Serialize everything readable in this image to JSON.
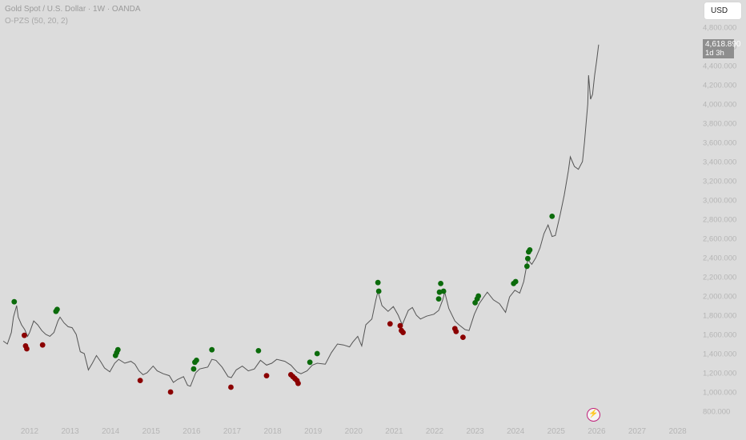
{
  "header": {
    "title": "Gold Spot / U.S. Dollar · 1W · OANDA",
    "indicator": "O-PZS (50, 20, 2)"
  },
  "currency_button": "USD",
  "price_tag": {
    "price": "4,618.890",
    "countdown": "1d 3h"
  },
  "colors": {
    "background": "#dcdcdc",
    "line": "#555555",
    "buy": "#0b6b0b",
    "sell": "#8b0000",
    "axis_text": "#b5b5b5"
  },
  "icons": {
    "bolt": "lightning-bolt-icon"
  },
  "chart_data": {
    "type": "line",
    "title": "Gold Spot / U.S. Dollar · 1W · OANDA",
    "y_ticks": [
      "800.000",
      "1,000.000",
      "1,200.000",
      "1,400.000",
      "1,600.000",
      "1,800.000",
      "2,000.000",
      "2,200.000",
      "2,400.000",
      "2,600.000",
      "2,800.000",
      "3,000.000",
      "3,200.000",
      "3,400.000",
      "3,600.000",
      "3,800.000",
      "4,000.000",
      "4,200.000",
      "4,400.000",
      "4,600.000",
      "4,800.000"
    ],
    "y_tick_values": [
      800,
      1000,
      1200,
      1400,
      1600,
      1800,
      2000,
      2200,
      2400,
      2600,
      2800,
      3000,
      3200,
      3400,
      3600,
      3800,
      4000,
      4200,
      4400,
      4600,
      4800
    ],
    "x_ticks": [
      "2012",
      "2013",
      "2014",
      "2015",
      "2016",
      "2017",
      "2018",
      "2019",
      "2020",
      "2021",
      "2022",
      "2023",
      "2024",
      "2025",
      "2026",
      "2027",
      "2028"
    ],
    "ylim": [
      700,
      4900
    ],
    "xlim": [
      2011.3,
      2028.6
    ],
    "grid": false,
    "series": [
      {
        "points": [
          [
            2011.35,
            1530
          ],
          [
            2011.45,
            1500
          ],
          [
            2011.55,
            1620
          ],
          [
            2011.6,
            1780
          ],
          [
            2011.68,
            1900
          ],
          [
            2011.72,
            1780
          ],
          [
            2011.8,
            1700
          ],
          [
            2011.88,
            1650
          ],
          [
            2011.95,
            1580
          ],
          [
            2012.0,
            1620
          ],
          [
            2012.1,
            1740
          ],
          [
            2012.2,
            1700
          ],
          [
            2012.3,
            1640
          ],
          [
            2012.4,
            1600
          ],
          [
            2012.5,
            1580
          ],
          [
            2012.6,
            1620
          ],
          [
            2012.7,
            1740
          ],
          [
            2012.75,
            1780
          ],
          [
            2012.85,
            1720
          ],
          [
            2012.95,
            1680
          ],
          [
            2013.05,
            1670
          ],
          [
            2013.15,
            1600
          ],
          [
            2013.25,
            1420
          ],
          [
            2013.35,
            1400
          ],
          [
            2013.45,
            1230
          ],
          [
            2013.55,
            1300
          ],
          [
            2013.65,
            1380
          ],
          [
            2013.75,
            1320
          ],
          [
            2013.85,
            1250
          ],
          [
            2013.98,
            1210
          ],
          [
            2014.1,
            1300
          ],
          [
            2014.2,
            1340
          ],
          [
            2014.35,
            1300
          ],
          [
            2014.5,
            1320
          ],
          [
            2014.6,
            1290
          ],
          [
            2014.7,
            1220
          ],
          [
            2014.8,
            1180
          ],
          [
            2014.9,
            1200
          ],
          [
            2015.05,
            1270
          ],
          [
            2015.15,
            1220
          ],
          [
            2015.3,
            1190
          ],
          [
            2015.45,
            1170
          ],
          [
            2015.55,
            1100
          ],
          [
            2015.65,
            1130
          ],
          [
            2015.8,
            1160
          ],
          [
            2015.9,
            1070
          ],
          [
            2015.97,
            1060
          ],
          [
            2016.1,
            1200
          ],
          [
            2016.2,
            1240
          ],
          [
            2016.4,
            1260
          ],
          [
            2016.5,
            1340
          ],
          [
            2016.6,
            1330
          ],
          [
            2016.75,
            1260
          ],
          [
            2016.9,
            1160
          ],
          [
            2016.98,
            1150
          ],
          [
            2017.1,
            1230
          ],
          [
            2017.25,
            1270
          ],
          [
            2017.4,
            1220
          ],
          [
            2017.55,
            1240
          ],
          [
            2017.7,
            1330
          ],
          [
            2017.85,
            1280
          ],
          [
            2017.98,
            1300
          ],
          [
            2018.1,
            1340
          ],
          [
            2018.3,
            1320
          ],
          [
            2018.45,
            1280
          ],
          [
            2018.6,
            1210
          ],
          [
            2018.7,
            1190
          ],
          [
            2018.85,
            1220
          ],
          [
            2018.98,
            1280
          ],
          [
            2019.1,
            1300
          ],
          [
            2019.3,
            1290
          ],
          [
            2019.45,
            1410
          ],
          [
            2019.6,
            1500
          ],
          [
            2019.75,
            1490
          ],
          [
            2019.9,
            1470
          ],
          [
            2019.98,
            1520
          ],
          [
            2020.1,
            1580
          ],
          [
            2020.2,
            1480
          ],
          [
            2020.3,
            1700
          ],
          [
            2020.45,
            1760
          ],
          [
            2020.55,
            1960
          ],
          [
            2020.6,
            2050
          ],
          [
            2020.7,
            1900
          ],
          [
            2020.85,
            1840
          ],
          [
            2020.98,
            1890
          ],
          [
            2021.1,
            1800
          ],
          [
            2021.2,
            1700
          ],
          [
            2021.35,
            1850
          ],
          [
            2021.45,
            1880
          ],
          [
            2021.55,
            1800
          ],
          [
            2021.65,
            1760
          ],
          [
            2021.8,
            1790
          ],
          [
            2021.98,
            1810
          ],
          [
            2022.1,
            1850
          ],
          [
            2022.2,
            1960
          ],
          [
            2022.25,
            2040
          ],
          [
            2022.35,
            1870
          ],
          [
            2022.5,
            1740
          ],
          [
            2022.6,
            1700
          ],
          [
            2022.75,
            1650
          ],
          [
            2022.85,
            1640
          ],
          [
            2022.98,
            1810
          ],
          [
            2023.1,
            1920
          ],
          [
            2023.2,
            1980
          ],
          [
            2023.3,
            2040
          ],
          [
            2023.45,
            1960
          ],
          [
            2023.6,
            1920
          ],
          [
            2023.75,
            1830
          ],
          [
            2023.85,
            1990
          ],
          [
            2023.98,
            2060
          ],
          [
            2024.1,
            2030
          ],
          [
            2024.2,
            2150
          ],
          [
            2024.3,
            2380
          ],
          [
            2024.4,
            2330
          ],
          [
            2024.5,
            2400
          ],
          [
            2024.6,
            2500
          ],
          [
            2024.7,
            2650
          ],
          [
            2024.8,
            2740
          ],
          [
            2024.9,
            2620
          ],
          [
            2024.98,
            2630
          ],
          [
            2025.1,
            2850
          ],
          [
            2025.2,
            3050
          ],
          [
            2025.3,
            3300
          ],
          [
            2025.35,
            3450
          ],
          [
            2025.45,
            3350
          ],
          [
            2025.55,
            3320
          ],
          [
            2025.65,
            3400
          ],
          [
            2025.7,
            3600
          ],
          [
            2025.78,
            4000
          ],
          [
            2025.8,
            4300
          ],
          [
            2025.85,
            4050
          ],
          [
            2025.9,
            4100
          ],
          [
            2025.95,
            4300
          ],
          [
            2026.0,
            4450
          ],
          [
            2026.05,
            4618
          ]
        ]
      }
    ],
    "buy_markers": [
      [
        2011.62,
        1940
      ],
      [
        2012.65,
        1840
      ],
      [
        2012.68,
        1860
      ],
      [
        2014.12,
        1380
      ],
      [
        2014.15,
        1410
      ],
      [
        2014.18,
        1440
      ],
      [
        2016.05,
        1240
      ],
      [
        2016.08,
        1310
      ],
      [
        2016.12,
        1330
      ],
      [
        2016.5,
        1440
      ],
      [
        2017.65,
        1430
      ],
      [
        2018.92,
        1310
      ],
      [
        2019.1,
        1400
      ],
      [
        2020.6,
        2140
      ],
      [
        2020.62,
        2050
      ],
      [
        2022.1,
        1970
      ],
      [
        2022.12,
        2040
      ],
      [
        2022.15,
        2130
      ],
      [
        2022.22,
        2050
      ],
      [
        2023.0,
        1930
      ],
      [
        2023.05,
        1970
      ],
      [
        2023.08,
        2000
      ],
      [
        2023.95,
        2130
      ],
      [
        2024.0,
        2150
      ],
      [
        2024.28,
        2310
      ],
      [
        2024.3,
        2390
      ],
      [
        2024.32,
        2460
      ],
      [
        2024.35,
        2480
      ],
      [
        2024.9,
        2830
      ]
    ],
    "sell_markers": [
      [
        2011.87,
        1590
      ],
      [
        2011.9,
        1480
      ],
      [
        2011.93,
        1450
      ],
      [
        2012.32,
        1490
      ],
      [
        2014.73,
        1120
      ],
      [
        2015.48,
        1000
      ],
      [
        2016.97,
        1050
      ],
      [
        2017.85,
        1170
      ],
      [
        2018.45,
        1180
      ],
      [
        2018.5,
        1160
      ],
      [
        2018.55,
        1140
      ],
      [
        2018.6,
        1120
      ],
      [
        2018.63,
        1090
      ],
      [
        2020.9,
        1710
      ],
      [
        2021.15,
        1690
      ],
      [
        2021.18,
        1640
      ],
      [
        2021.22,
        1620
      ],
      [
        2022.5,
        1660
      ],
      [
        2022.53,
        1630
      ],
      [
        2022.7,
        1570
      ]
    ]
  }
}
